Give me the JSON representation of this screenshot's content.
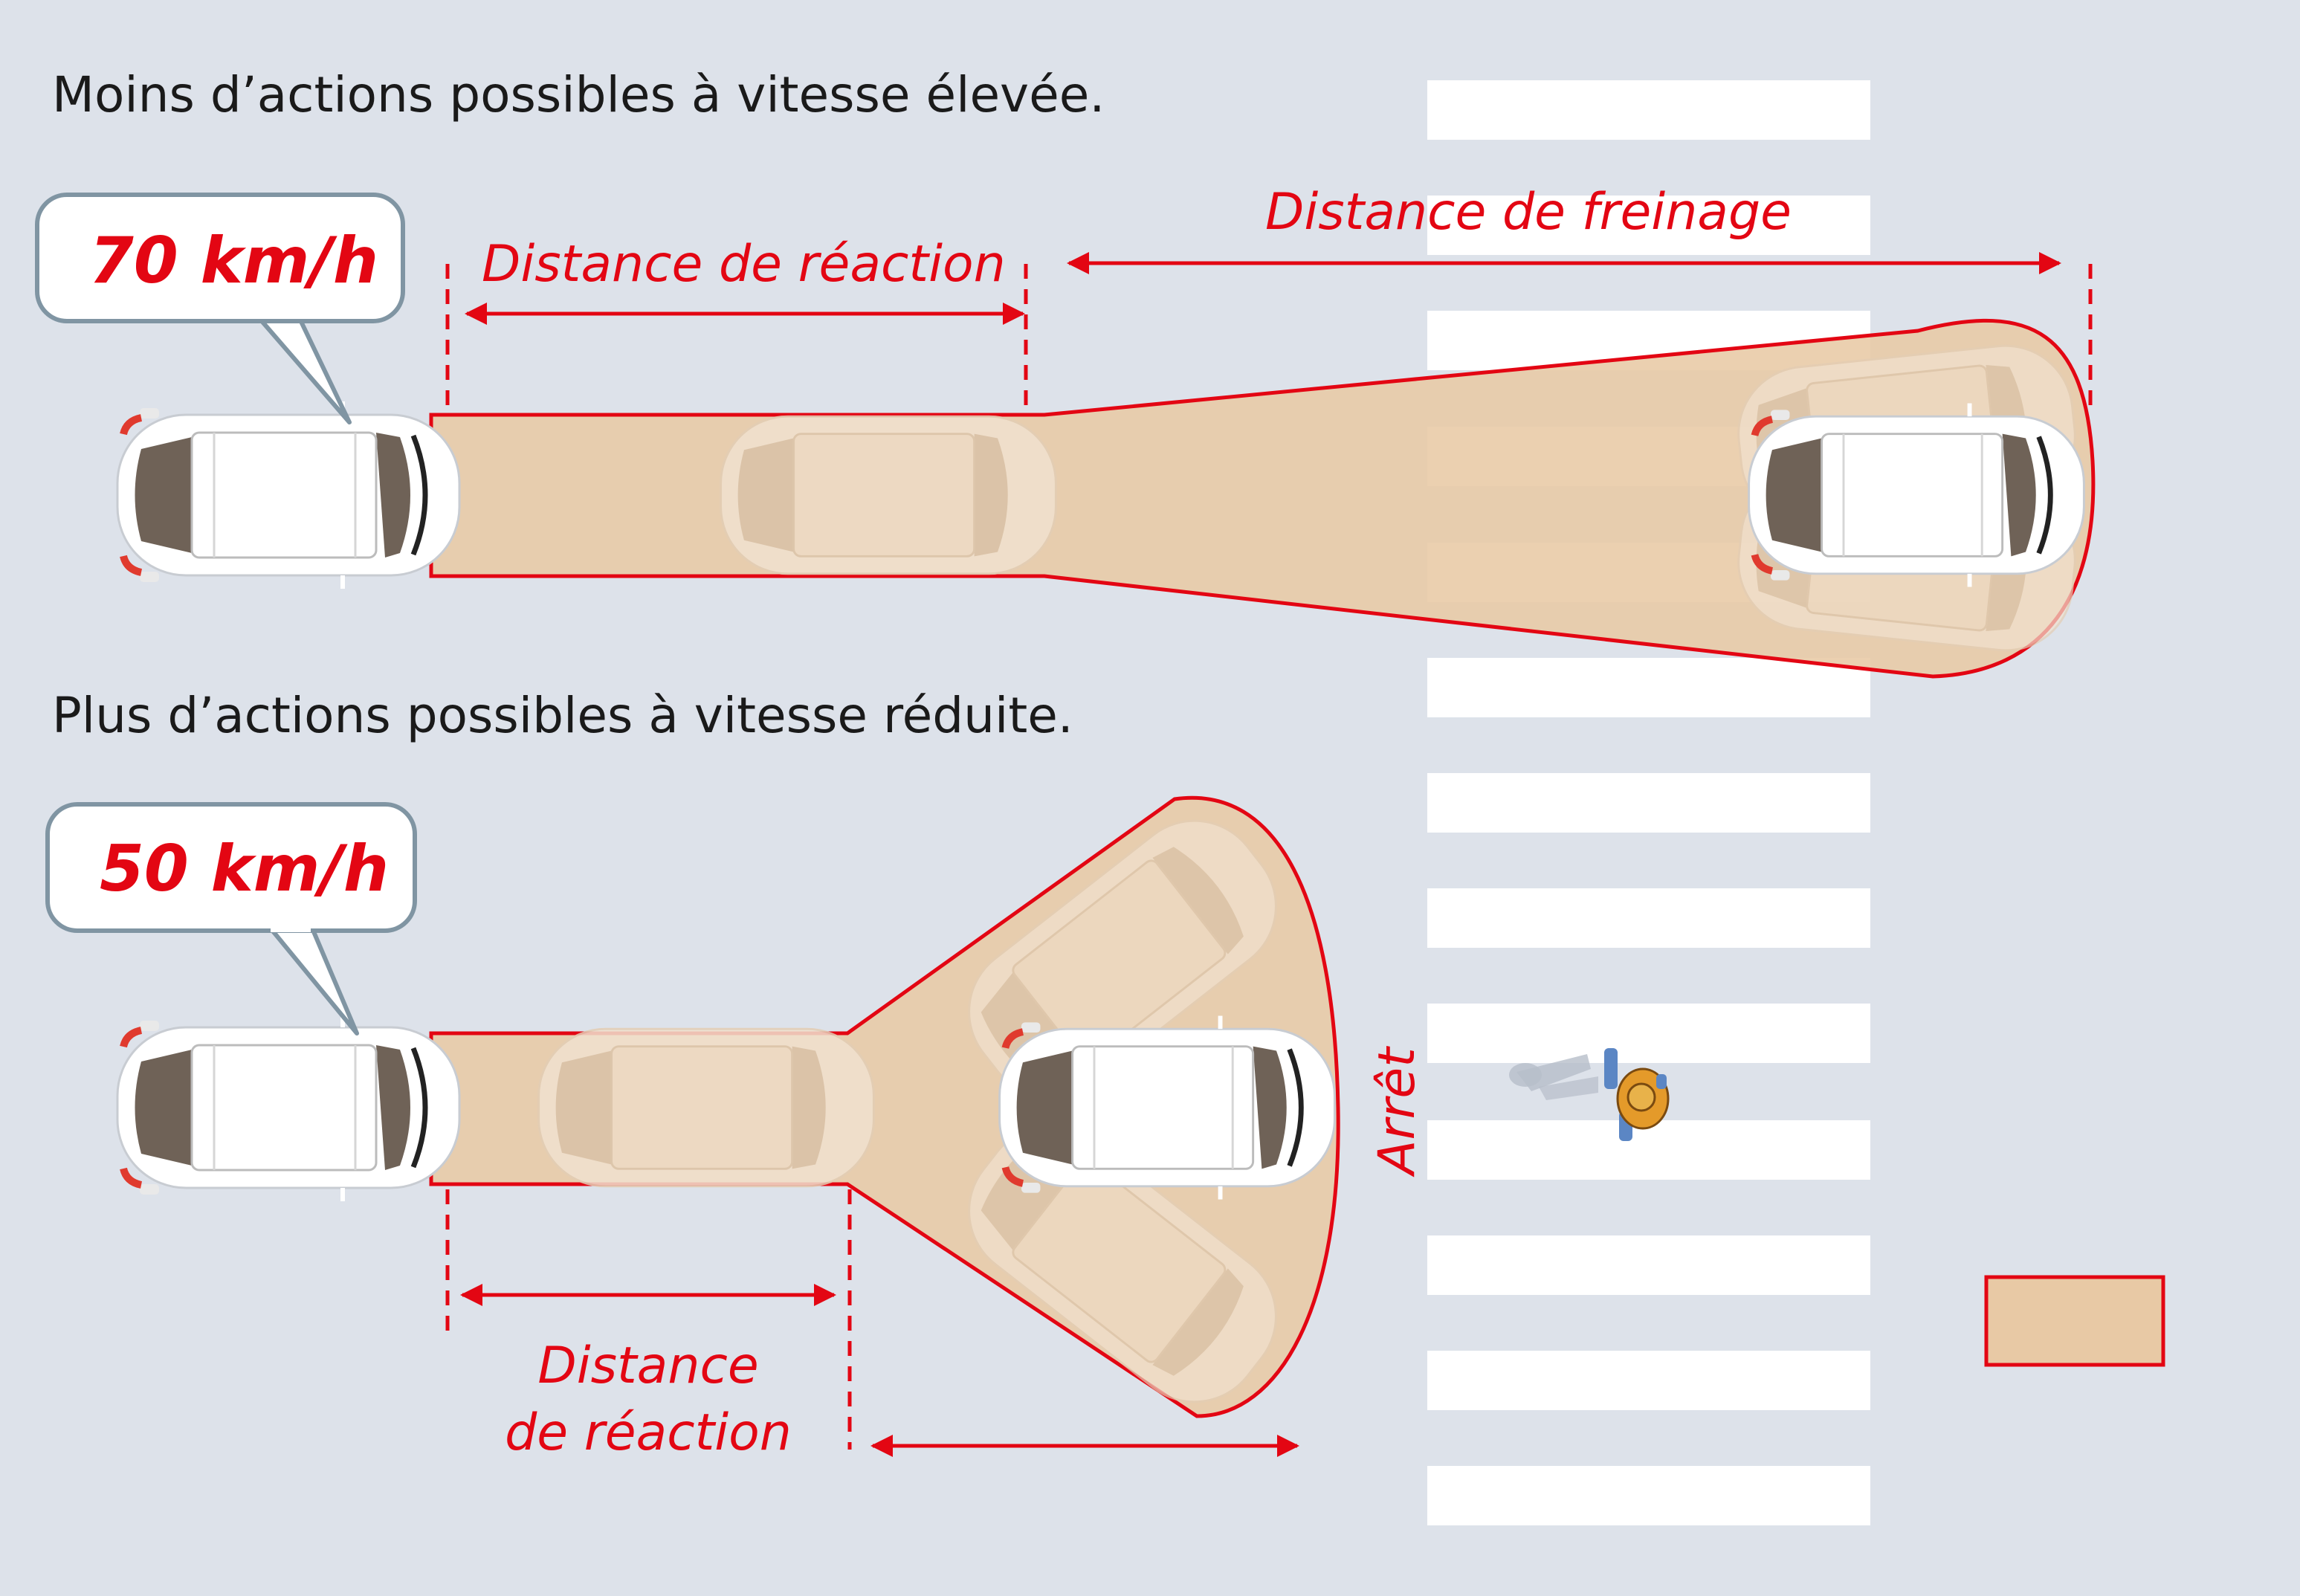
{
  "scenario_fast": {
    "heading": "Moins d’actions possibles à vitesse élevée.",
    "speed": "70 km/h",
    "reaction_label": "Distance de réaction",
    "braking_label": "Distance de freinage"
  },
  "scenario_slow": {
    "heading": "Plus d’actions possibles à vitesse réduite.",
    "speed": "50 km/h",
    "reaction_label_line1": "Distance",
    "reaction_label_line2": "de réaction",
    "stop_label": "Arrêt"
  },
  "colors": {
    "background": "#dde2ea",
    "accent_red": "#e30613",
    "zone_fill": "#e8c9a5",
    "bubble_border": "#8095a3",
    "crosswalk": "#ffffff"
  }
}
